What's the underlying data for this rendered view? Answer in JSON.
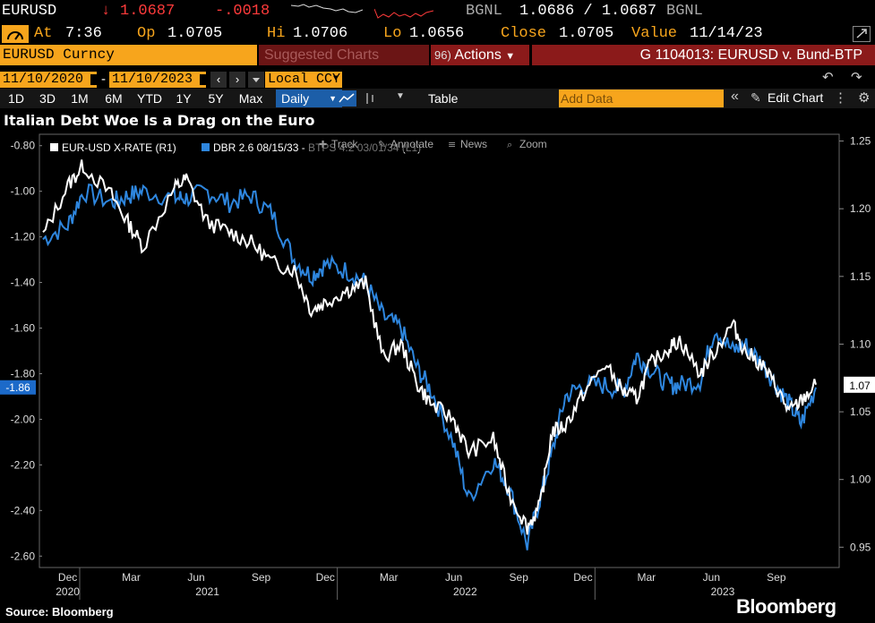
{
  "ticker": {
    "symbol": "EURUSD",
    "arrow": "↓",
    "last": "1.0687",
    "change": "-.0018",
    "source_left": "BGNL",
    "bid_ask": "1.0686 / 1.0687",
    "source_right": "BGNL"
  },
  "stats": {
    "time_label": "At",
    "time": "7:36",
    "open_label": "Op",
    "open": "1.0705",
    "high_label": "Hi",
    "high": "1.0706",
    "low_label": "Lo",
    "low": "1.0656",
    "close_label": "Close",
    "close": "1.0705",
    "value_label": "Value",
    "value_date": "11/14/23"
  },
  "command": {
    "security": "EURUSD Curncy",
    "suggested": "Suggested Charts",
    "actions_prefix": "96)",
    "actions": "Actions",
    "chart_id": "G 1104013: EURUSD v. Bund-BTP"
  },
  "datebar": {
    "start": "11/10/2020",
    "dash": "-",
    "end": "11/10/2023",
    "currency": "Local CCY"
  },
  "toolbar": {
    "ranges": [
      "1D",
      "3D",
      "1M",
      "6M",
      "YTD",
      "1Y",
      "5Y",
      "Max"
    ],
    "frequency": "Daily",
    "table": "Table",
    "add_data": "Add Data",
    "edit_chart": "Edit Chart"
  },
  "chart_title": "Italian Debt Woe Is a Drag on the Euro",
  "legend": {
    "series1": "EUR-USD X-RATE (R1)",
    "series2": "DBR 2.6 08/15/33 - BTPS 4.2 03/01/34 (L1)",
    "track": "Track",
    "annotate": "Annotate",
    "news": "News",
    "zoom": "Zoom"
  },
  "footer": {
    "source": "Source: Bloomberg",
    "brand": "Bloomberg"
  },
  "colors": {
    "accent_orange": "#f7a51c",
    "down_red": "#ff3b3b",
    "series_white": "#ffffff",
    "series_blue": "#2e86de",
    "command_red": "#8b1a1a"
  },
  "chart_data": {
    "type": "line",
    "left_axis": {
      "ylim": [
        -2.65,
        -0.75
      ],
      "ticks": [
        "-0.80",
        "-1.00",
        "-1.20",
        "-1.40",
        "-1.60",
        "-1.80",
        "-2.00",
        "-2.20",
        "-2.40",
        "-2.60"
      ],
      "current_label": "-1.86"
    },
    "right_axis": {
      "ylim": [
        0.935,
        1.255
      ],
      "ticks": [
        "1.25",
        "1.20",
        "1.15",
        "1.10",
        "1.05",
        "1.00",
        "0.95"
      ],
      "current_label": "1.07"
    },
    "x_month_labels": [
      "Dec",
      "Mar",
      "Jun",
      "Sep",
      "Dec",
      "Mar",
      "Jun",
      "Sep",
      "Dec",
      "Mar",
      "Jun",
      "Sep"
    ],
    "x_year_labels": [
      "2020",
      "2021",
      "2022",
      "2023"
    ],
    "x": [
      "2020-11-10",
      "2020-12-15",
      "2021-01-06",
      "2021-02-15",
      "2021-03-10",
      "2021-04-01",
      "2021-05-15",
      "2021-06-01",
      "2021-07-01",
      "2021-08-01",
      "2021-09-01",
      "2021-10-01",
      "2021-11-01",
      "2021-11-25",
      "2021-12-15",
      "2022-01-15",
      "2022-02-10",
      "2022-03-07",
      "2022-04-01",
      "2022-04-25",
      "2022-05-15",
      "2022-06-14",
      "2022-07-06",
      "2022-08-10",
      "2022-09-01",
      "2022-09-27",
      "2022-10-15",
      "2022-11-01",
      "2022-11-20",
      "2022-12-15",
      "2023-01-15",
      "2023-02-10",
      "2023-03-01",
      "2023-03-20",
      "2023-04-15",
      "2023-05-01",
      "2023-05-30",
      "2023-06-20",
      "2023-07-15",
      "2023-08-01",
      "2023-08-25",
      "2023-09-15",
      "2023-10-03",
      "2023-10-20",
      "2023-11-10"
    ],
    "series": [
      {
        "name": "EUR-USD X-RATE (R1)",
        "axis": "right",
        "values": [
          1.18,
          1.217,
          1.232,
          1.21,
          1.19,
          1.172,
          1.215,
          1.222,
          1.19,
          1.183,
          1.175,
          1.16,
          1.155,
          1.125,
          1.131,
          1.14,
          1.145,
          1.09,
          1.1,
          1.07,
          1.055,
          1.045,
          1.02,
          1.03,
          0.99,
          0.965,
          0.98,
          1.035,
          1.04,
          1.063,
          1.085,
          1.065,
          1.06,
          1.085,
          1.097,
          1.103,
          1.078,
          1.095,
          1.115,
          1.095,
          1.085,
          1.068,
          1.05,
          1.058,
          1.07
        ]
      },
      {
        "name": "DBR 2.6 08/15/33 - BTPS 4.2 03/01/34 (L1)",
        "axis": "left",
        "values": [
          -1.21,
          -1.15,
          -1.0,
          -1.05,
          -1.02,
          -1.0,
          -1.03,
          -1.03,
          -1.0,
          -1.05,
          -1.02,
          -1.1,
          -1.3,
          -1.37,
          -1.32,
          -1.35,
          -1.4,
          -1.55,
          -1.6,
          -1.78,
          -1.88,
          -2.1,
          -2.35,
          -2.18,
          -2.3,
          -2.55,
          -2.35,
          -2.15,
          -1.9,
          -1.85,
          -1.85,
          -1.88,
          -1.72,
          -1.78,
          -1.85,
          -1.85,
          -1.83,
          -1.6,
          -1.7,
          -1.67,
          -1.75,
          -1.85,
          -1.93,
          -2.02,
          -1.86
        ]
      }
    ]
  }
}
